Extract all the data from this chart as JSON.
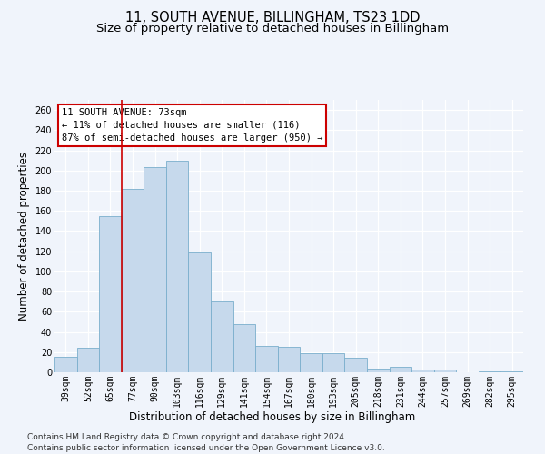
{
  "title": "11, SOUTH AVENUE, BILLINGHAM, TS23 1DD",
  "subtitle": "Size of property relative to detached houses in Billingham",
  "xlabel": "Distribution of detached houses by size in Billingham",
  "ylabel": "Number of detached properties",
  "categories": [
    "39sqm",
    "52sqm",
    "65sqm",
    "77sqm",
    "90sqm",
    "103sqm",
    "116sqm",
    "129sqm",
    "141sqm",
    "154sqm",
    "167sqm",
    "180sqm",
    "193sqm",
    "205sqm",
    "218sqm",
    "231sqm",
    "244sqm",
    "257sqm",
    "269sqm",
    "282sqm",
    "295sqm"
  ],
  "values": [
    15,
    24,
    155,
    182,
    203,
    210,
    119,
    70,
    48,
    26,
    25,
    19,
    19,
    14,
    4,
    5,
    3,
    3,
    0,
    1,
    1
  ],
  "bar_color": "#c6d9ec",
  "bar_edge_color": "#7aaecc",
  "annotation_title": "11 SOUTH AVENUE: 73sqm",
  "annotation_line1": "← 11% of detached houses are smaller (116)",
  "annotation_line2": "87% of semi-detached houses are larger (950) →",
  "annotation_box_color": "#ffffff",
  "annotation_box_edge": "#cc0000",
  "vline_color": "#cc0000",
  "vline_x": 2.5,
  "ylim": [
    0,
    270
  ],
  "yticks": [
    0,
    20,
    40,
    60,
    80,
    100,
    120,
    140,
    160,
    180,
    200,
    220,
    240,
    260
  ],
  "footer1": "Contains HM Land Registry data © Crown copyright and database right 2024.",
  "footer2": "Contains public sector information licensed under the Open Government Licence v3.0.",
  "bg_color": "#f0f4fb",
  "plot_bg_color": "#f0f4fb",
  "grid_color": "#ffffff",
  "title_fontsize": 10.5,
  "subtitle_fontsize": 9.5,
  "axis_label_fontsize": 8.5,
  "tick_fontsize": 7,
  "footer_fontsize": 6.5,
  "annotation_fontsize": 7.5
}
